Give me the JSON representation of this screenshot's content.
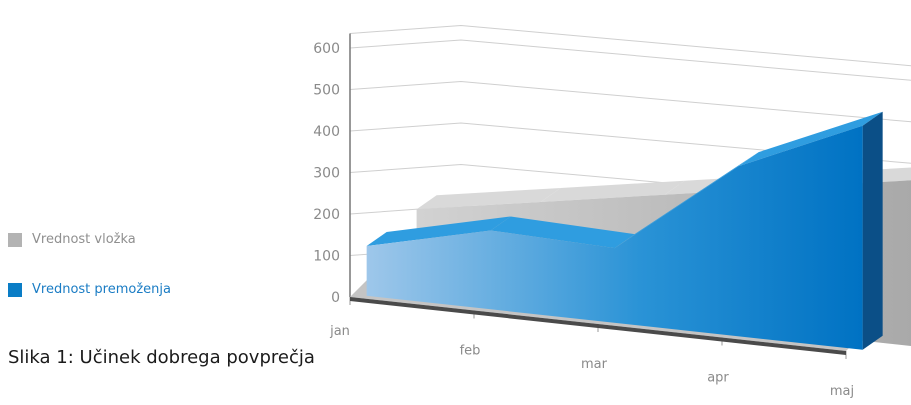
{
  "caption": "Slika 1: Učinek dobrega povprečja",
  "legend": [
    {
      "label": "Vrednost vložka",
      "color": "#b3b3b3"
    },
    {
      "label": "Vrednost premoženja",
      "color": "#0a7dc6"
    }
  ],
  "chart_data": {
    "type": "area",
    "three_d": true,
    "categories": [
      "jan",
      "feb",
      "mar",
      "apr",
      "maj"
    ],
    "ylim": [
      0,
      600
    ],
    "yticks": [
      0,
      100,
      200,
      300,
      400,
      500,
      600
    ],
    "grid": true,
    "legend_position": "left",
    "series": [
      {
        "name": "Vrednost vložka",
        "color": "#b3b3b3",
        "values": [
          200,
          250,
          300,
          350,
          400
        ]
      },
      {
        "name": "Vrednost premoženja",
        "color": "#0a7dc6",
        "values": [
          120,
          190,
          180,
          410,
          540
        ]
      }
    ]
  }
}
